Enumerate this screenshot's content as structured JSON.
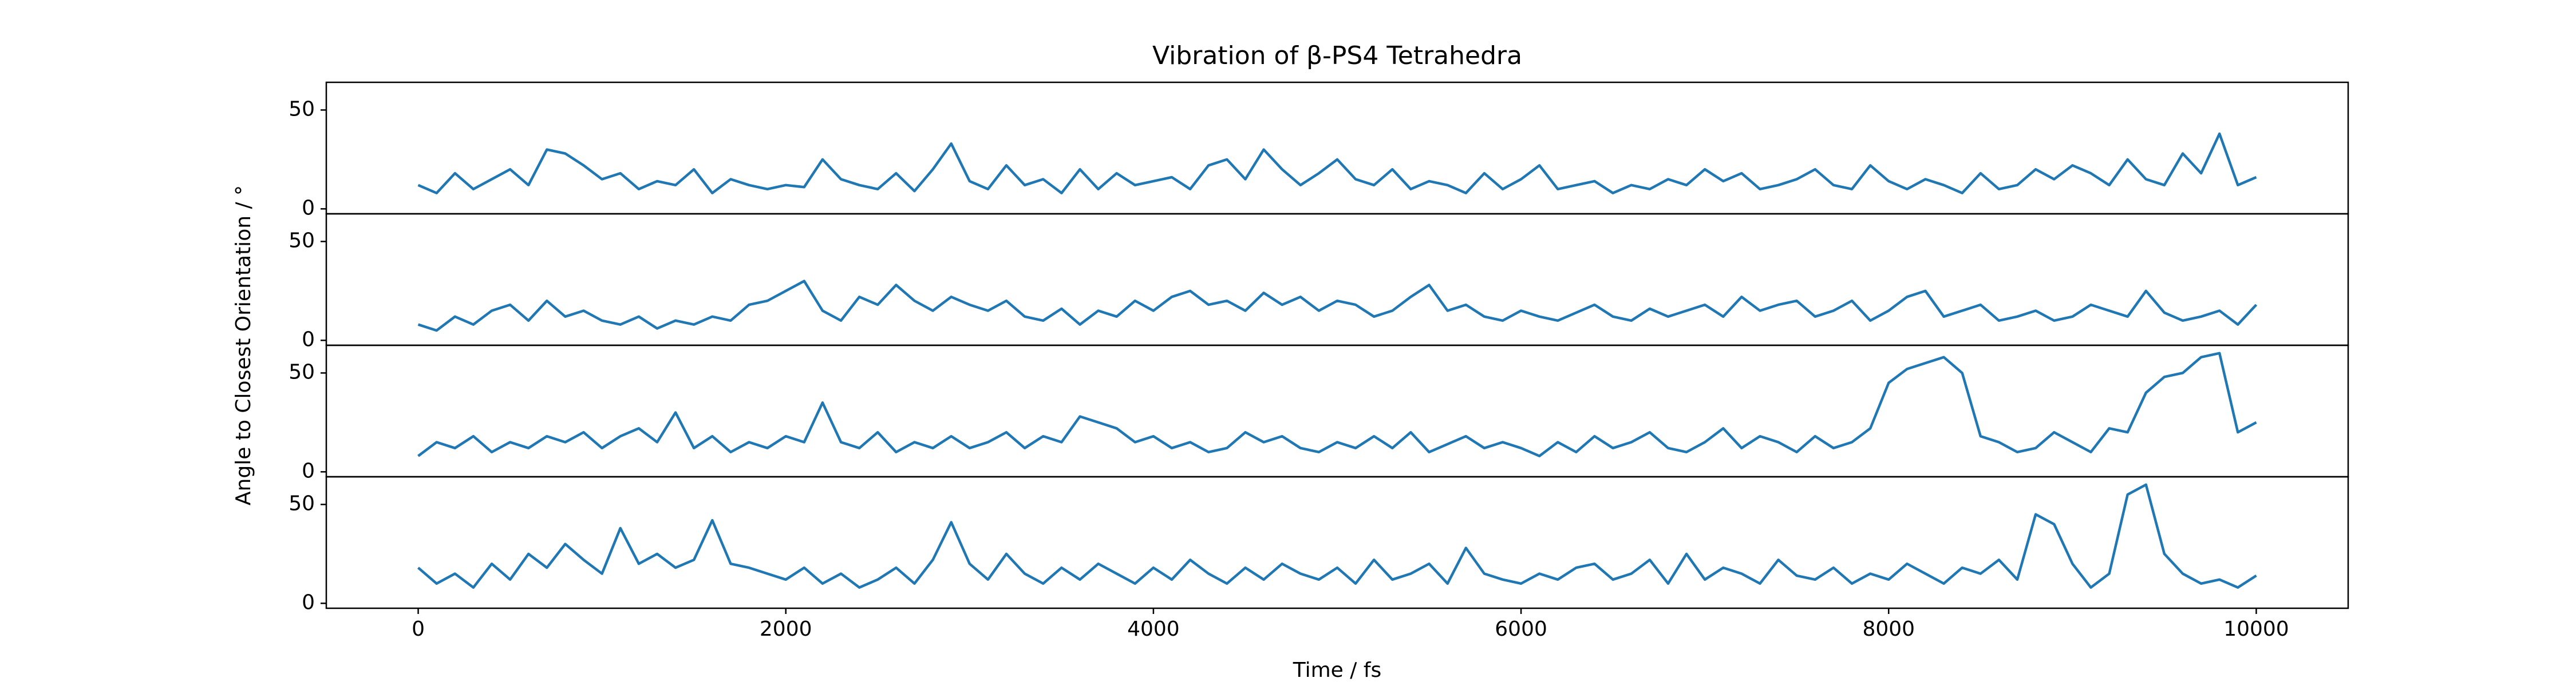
{
  "chart_data": {
    "type": "line",
    "title": "Vibration of β-PS4 Tetrahedra",
    "x_label": "Time / fs",
    "y_label": "Angle to Closest Orientation / °",
    "x": [
      0,
      100,
      200,
      300,
      400,
      500,
      600,
      700,
      800,
      900,
      1000,
      1100,
      1200,
      1300,
      1400,
      1500,
      1600,
      1700,
      1800,
      1900,
      2000,
      2100,
      2200,
      2300,
      2400,
      2500,
      2600,
      2700,
      2800,
      2900,
      3000,
      3100,
      3200,
      3300,
      3400,
      3500,
      3600,
      3700,
      3800,
      3900,
      4000,
      4100,
      4200,
      4300,
      4400,
      4500,
      4600,
      4700,
      4800,
      4900,
      5000,
      5100,
      5200,
      5300,
      5400,
      5500,
      5600,
      5700,
      5800,
      5900,
      6000,
      6100,
      6200,
      6300,
      6400,
      6500,
      6600,
      6700,
      6800,
      6900,
      7000,
      7100,
      7200,
      7300,
      7400,
      7500,
      7600,
      7700,
      7800,
      7900,
      8000,
      8100,
      8200,
      8300,
      8400,
      8500,
      8600,
      8700,
      8800,
      8900,
      9000,
      9100,
      9200,
      9300,
      9400,
      9500,
      9600,
      9700,
      9800,
      9900,
      10000
    ],
    "xlim": [
      -500,
      10500
    ],
    "xticks": [
      0,
      2000,
      4000,
      6000,
      8000,
      10000
    ],
    "ylim": [
      -2.5,
      64
    ],
    "yticks": [
      0,
      50
    ],
    "series": [
      {
        "color": "#1f77b4",
        "values": [
          12,
          8,
          18,
          10,
          15,
          20,
          12,
          30,
          28,
          22,
          15,
          18,
          10,
          14,
          12,
          20,
          8,
          15,
          12,
          10,
          12,
          11,
          25,
          15,
          12,
          10,
          18,
          9,
          20,
          33,
          14,
          10,
          22,
          12,
          15,
          8,
          20,
          10,
          18,
          12,
          14,
          16,
          10,
          22,
          25,
          15,
          30,
          20,
          12,
          18,
          25,
          15,
          12,
          20,
          10,
          14,
          12,
          8,
          18,
          10,
          15,
          22,
          10,
          12,
          14,
          8,
          12,
          10,
          15,
          12,
          20,
          14,
          18,
          10,
          12,
          15,
          20,
          12,
          10,
          22,
          14,
          10,
          15,
          12,
          8,
          18,
          10,
          12,
          20,
          15,
          22,
          18,
          12,
          25,
          15,
          12,
          28,
          18,
          38,
          12,
          16
        ]
      },
      {
        "color": "#1f77b4",
        "values": [
          8,
          5,
          12,
          8,
          15,
          18,
          10,
          20,
          12,
          15,
          10,
          8,
          12,
          6,
          10,
          8,
          12,
          10,
          18,
          20,
          25,
          30,
          15,
          10,
          22,
          18,
          28,
          20,
          15,
          22,
          18,
          15,
          20,
          12,
          10,
          16,
          8,
          15,
          12,
          20,
          15,
          22,
          25,
          18,
          20,
          15,
          24,
          18,
          22,
          15,
          20,
          18,
          12,
          15,
          22,
          28,
          15,
          18,
          12,
          10,
          15,
          12,
          10,
          14,
          18,
          12,
          10,
          16,
          12,
          15,
          18,
          12,
          22,
          15,
          18,
          20,
          12,
          15,
          20,
          10,
          15,
          22,
          25,
          12,
          15,
          18,
          10,
          12,
          15,
          10,
          12,
          18,
          15,
          12,
          25,
          14,
          10,
          12,
          15,
          8,
          18
        ]
      },
      {
        "color": "#1f77b4",
        "values": [
          8,
          15,
          12,
          18,
          10,
          15,
          12,
          18,
          15,
          20,
          12,
          18,
          22,
          15,
          30,
          12,
          18,
          10,
          15,
          12,
          18,
          15,
          35,
          15,
          12,
          20,
          10,
          15,
          12,
          18,
          12,
          15,
          20,
          12,
          18,
          15,
          28,
          25,
          22,
          15,
          18,
          12,
          15,
          10,
          12,
          20,
          15,
          18,
          12,
          10,
          15,
          12,
          18,
          12,
          20,
          10,
          14,
          18,
          12,
          15,
          12,
          8,
          15,
          10,
          18,
          12,
          15,
          20,
          12,
          10,
          15,
          22,
          12,
          18,
          15,
          10,
          18,
          12,
          15,
          22,
          45,
          52,
          55,
          58,
          50,
          18,
          15,
          10,
          12,
          20,
          15,
          10,
          22,
          20,
          40,
          48,
          50,
          58,
          60,
          20,
          25
        ]
      },
      {
        "color": "#1f77b4",
        "values": [
          18,
          10,
          15,
          8,
          20,
          12,
          25,
          18,
          30,
          22,
          15,
          38,
          20,
          25,
          18,
          22,
          42,
          20,
          18,
          15,
          12,
          18,
          10,
          15,
          8,
          12,
          18,
          10,
          22,
          41,
          20,
          12,
          25,
          15,
          10,
          18,
          12,
          20,
          15,
          10,
          18,
          12,
          22,
          15,
          10,
          18,
          12,
          20,
          15,
          12,
          18,
          10,
          22,
          12,
          15,
          20,
          10,
          28,
          15,
          12,
          10,
          15,
          12,
          18,
          20,
          12,
          15,
          22,
          10,
          25,
          12,
          18,
          15,
          10,
          22,
          14,
          12,
          18,
          10,
          15,
          12,
          20,
          15,
          10,
          18,
          15,
          22,
          12,
          45,
          40,
          20,
          8,
          15,
          55,
          60,
          25,
          15,
          10,
          12,
          8,
          14
        ]
      }
    ]
  }
}
